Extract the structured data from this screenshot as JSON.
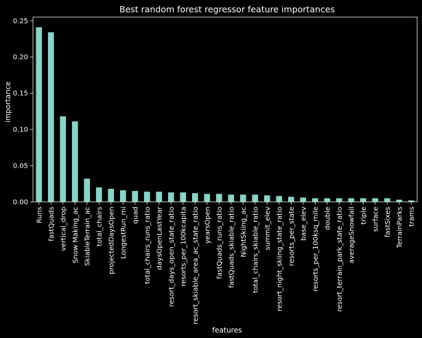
{
  "chart_data": {
    "type": "bar",
    "title": "Best random forest regressor feature importances",
    "xlabel": "features",
    "ylabel": "importance",
    "ylim": [
      0,
      0.255
    ],
    "yticks": [
      "0.00",
      "0.05",
      "0.10",
      "0.15",
      "0.20",
      "0.25"
    ],
    "grid": false,
    "bar_color": "#8dd3c7",
    "background": "#000000",
    "categories": [
      "Runs",
      "fastQuads",
      "vertical_drop",
      "Snow Making_ac",
      "SkiableTerrain_ac",
      "total_chairs",
      "projectedDaysOpen",
      "LongestRun_mi",
      "quad",
      "total_chairs_runs_ratio",
      "daysOpenLastYear",
      "resort_days_open_state_ratio",
      "resorts_per_100kcapita",
      "resort_skiable_area_ac_state_ratio",
      "yearsOpen",
      "fastQuads_runs_ratio",
      "fastQuads_skiable_ratio",
      "NightSkiing_ac",
      "total_chairs_skiable_ratio",
      "summit_elev",
      "resort_night_skiing_state_ratio",
      "resorts_per_state",
      "base_elev",
      "resorts_per_100ksq_mile",
      "double",
      "resort_terrain_park_state_ratio",
      "averageSnowfall",
      "triple",
      "surface",
      "fastSixes",
      "TerrainParks",
      "trams"
    ],
    "values": [
      0.241,
      0.234,
      0.118,
      0.111,
      0.032,
      0.02,
      0.018,
      0.016,
      0.015,
      0.014,
      0.014,
      0.013,
      0.013,
      0.012,
      0.011,
      0.011,
      0.01,
      0.01,
      0.01,
      0.009,
      0.008,
      0.007,
      0.006,
      0.005,
      0.005,
      0.005,
      0.005,
      0.005,
      0.005,
      0.005,
      0.003,
      0.002
    ]
  }
}
